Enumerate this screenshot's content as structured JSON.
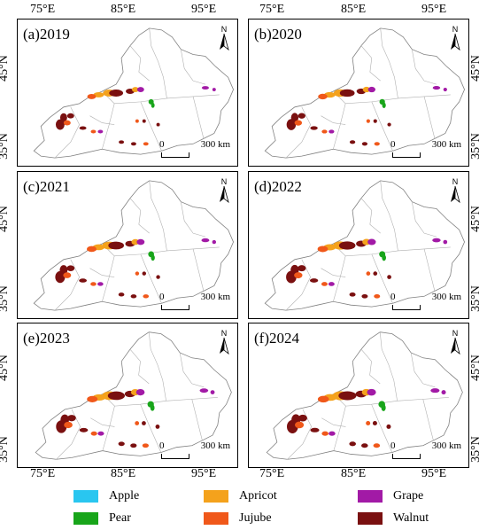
{
  "axes": {
    "lon_labels": [
      "75°E",
      "85°E",
      "95°E"
    ],
    "lat_labels": [
      "45°N",
      "35°N"
    ]
  },
  "scale_bar": {
    "zero": "0",
    "label": "300 km"
  },
  "north_arrow": {
    "label": "N"
  },
  "panels": [
    {
      "title": "(a)2019"
    },
    {
      "title": "(b)2020"
    },
    {
      "title": "(c)2021"
    },
    {
      "title": "(d)2022"
    },
    {
      "title": "(e)2023"
    },
    {
      "title": "(f)2024"
    }
  ],
  "legend": [
    {
      "label": "Apple",
      "color": "#29c6f0"
    },
    {
      "label": "Apricot",
      "color": "#f4a21c"
    },
    {
      "label": "Grape",
      "color": "#a21aa6"
    },
    {
      "label": "Pear",
      "color": "#18a51a"
    },
    {
      "label": "Jujube",
      "color": "#f0581a"
    },
    {
      "label": "Walnut",
      "color": "#7a1010"
    }
  ],
  "colors": {
    "boundary": "#808080",
    "county_lines": "#b0b0b0"
  }
}
